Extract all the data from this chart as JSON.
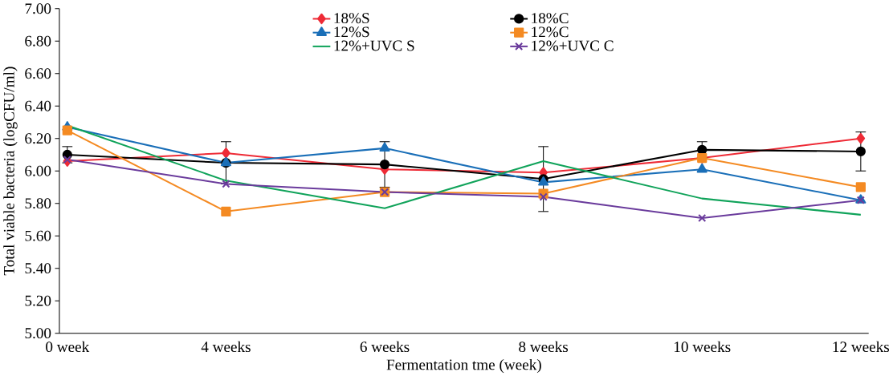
{
  "chart_data": {
    "type": "line",
    "xlabel": "Fermentation tme (week)",
    "ylabel": "Total viable bacteria (logCFU/ml)",
    "categories": [
      "0 week",
      "4 weeks",
      "6 weeks",
      "8 weeks",
      "10 weeks",
      "12 weeks"
    ],
    "ylim": [
      5.0,
      7.0
    ],
    "yticks": [
      {
        "value": 5.0,
        "label": "5.00"
      },
      {
        "value": 5.2,
        "label": "5.20"
      },
      {
        "value": 5.4,
        "label": "5.40"
      },
      {
        "value": 5.6,
        "label": "5.60"
      },
      {
        "value": 5.8,
        "label": "5.80"
      },
      {
        "value": 6.0,
        "label": "6.00"
      },
      {
        "value": 6.2,
        "label": "6.20"
      },
      {
        "value": 6.4,
        "label": "6.40"
      },
      {
        "value": 6.6,
        "label": "6.60"
      },
      {
        "value": 6.8,
        "label": "6.80"
      },
      {
        "value": 7.0,
        "label": "7.00"
      }
    ],
    "grid": false,
    "legend": "top",
    "series": [
      {
        "name": "18%S",
        "color": "#ee2b36",
        "marker": "diamond",
        "values": [
          6.06,
          6.11,
          6.01,
          5.99,
          6.08,
          6.2
        ]
      },
      {
        "name": "18%C",
        "color": "#000000",
        "marker": "circle",
        "values": [
          6.1,
          6.05,
          6.04,
          5.95,
          6.13,
          6.12
        ],
        "errors": [
          0.05,
          0.13,
          0.14,
          0.2,
          0.05,
          0.12
        ]
      },
      {
        "name": "12%S",
        "color": "#1a6fb8",
        "marker": "triangle",
        "values": [
          6.27,
          6.05,
          6.14,
          5.93,
          6.01,
          5.82
        ]
      },
      {
        "name": "12%C",
        "color": "#f48a22",
        "marker": "square",
        "values": [
          6.25,
          5.75,
          5.87,
          5.86,
          6.08,
          5.9
        ]
      },
      {
        "name": "12%+UVC S",
        "color": "#10a35a",
        "marker": "none",
        "values": [
          6.28,
          5.94,
          5.77,
          6.06,
          5.83,
          5.73
        ]
      },
      {
        "name": "12%+UVC C",
        "color": "#6a3b9c",
        "marker": "cross",
        "values": [
          6.07,
          5.92,
          5.87,
          5.84,
          5.71,
          5.82
        ]
      }
    ]
  }
}
